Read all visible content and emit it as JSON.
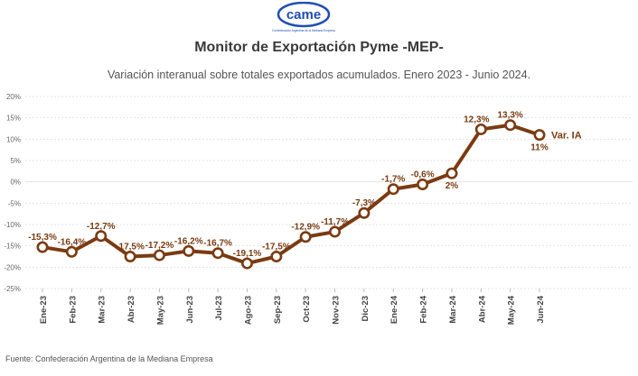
{
  "logo": {
    "wordmark": "came",
    "tagline": "Confederación Argentina de la Mediana Empresa"
  },
  "header": {
    "title": "Monitor de Exportación Pyme -MEP-",
    "subtitle": "Variación interanual sobre totales exportados acumulados. Enero 2023 - Junio 2024."
  },
  "footer": {
    "source": "Fuente: Confederación Argentina de la Mediana Empresa"
  },
  "chart_data": {
    "type": "line",
    "title": "Monitor de Exportación Pyme -MEP-",
    "subtitle": "Variación interanual sobre totales exportados acumulados. Enero 2023 - Junio 2024.",
    "xlabel": "",
    "ylabel": "",
    "ylim": [
      -25,
      20
    ],
    "yticks": [
      "20%",
      "15%",
      "10%",
      "5%",
      "0%",
      "-5%",
      "-10%",
      "-15%",
      "-20%",
      "-25%"
    ],
    "ytick_values": [
      20,
      15,
      10,
      5,
      0,
      -5,
      -10,
      -15,
      -20,
      -25
    ],
    "grid": true,
    "categories": [
      "Ene-23",
      "Feb-23",
      "Mar-23",
      "Abr-23",
      "May-23",
      "Jun-23",
      "Jul-23",
      "Ago-23",
      "Sep-23",
      "Oct-23",
      "Nov-23",
      "Dic-23",
      "Ene-24",
      "Feb-24",
      "Mar-24",
      "Abr-24",
      "May-24",
      "Jun-24"
    ],
    "series": [
      {
        "name": "Var. IA",
        "color": "#7a3b12",
        "values": [
          -15.3,
          -16.4,
          -12.7,
          -17.5,
          -17.2,
          -16.2,
          -16.7,
          -19.1,
          -17.5,
          -12.9,
          -11.7,
          -7.3,
          -1.7,
          -0.6,
          2,
          12.3,
          13.3,
          11
        ],
        "labels": [
          "-15,3%",
          "-16,4%",
          "-12,7%",
          "-17,5%",
          "-17,2%",
          "-16,2%",
          "-16,7%",
          "-19,1%",
          "-17,5%",
          "-12,9%",
          "-11,7%",
          "-7,3%",
          "-1,7%",
          "-0,6%",
          "2%",
          "12,3%",
          "13,3%",
          "11%"
        ]
      }
    ]
  }
}
